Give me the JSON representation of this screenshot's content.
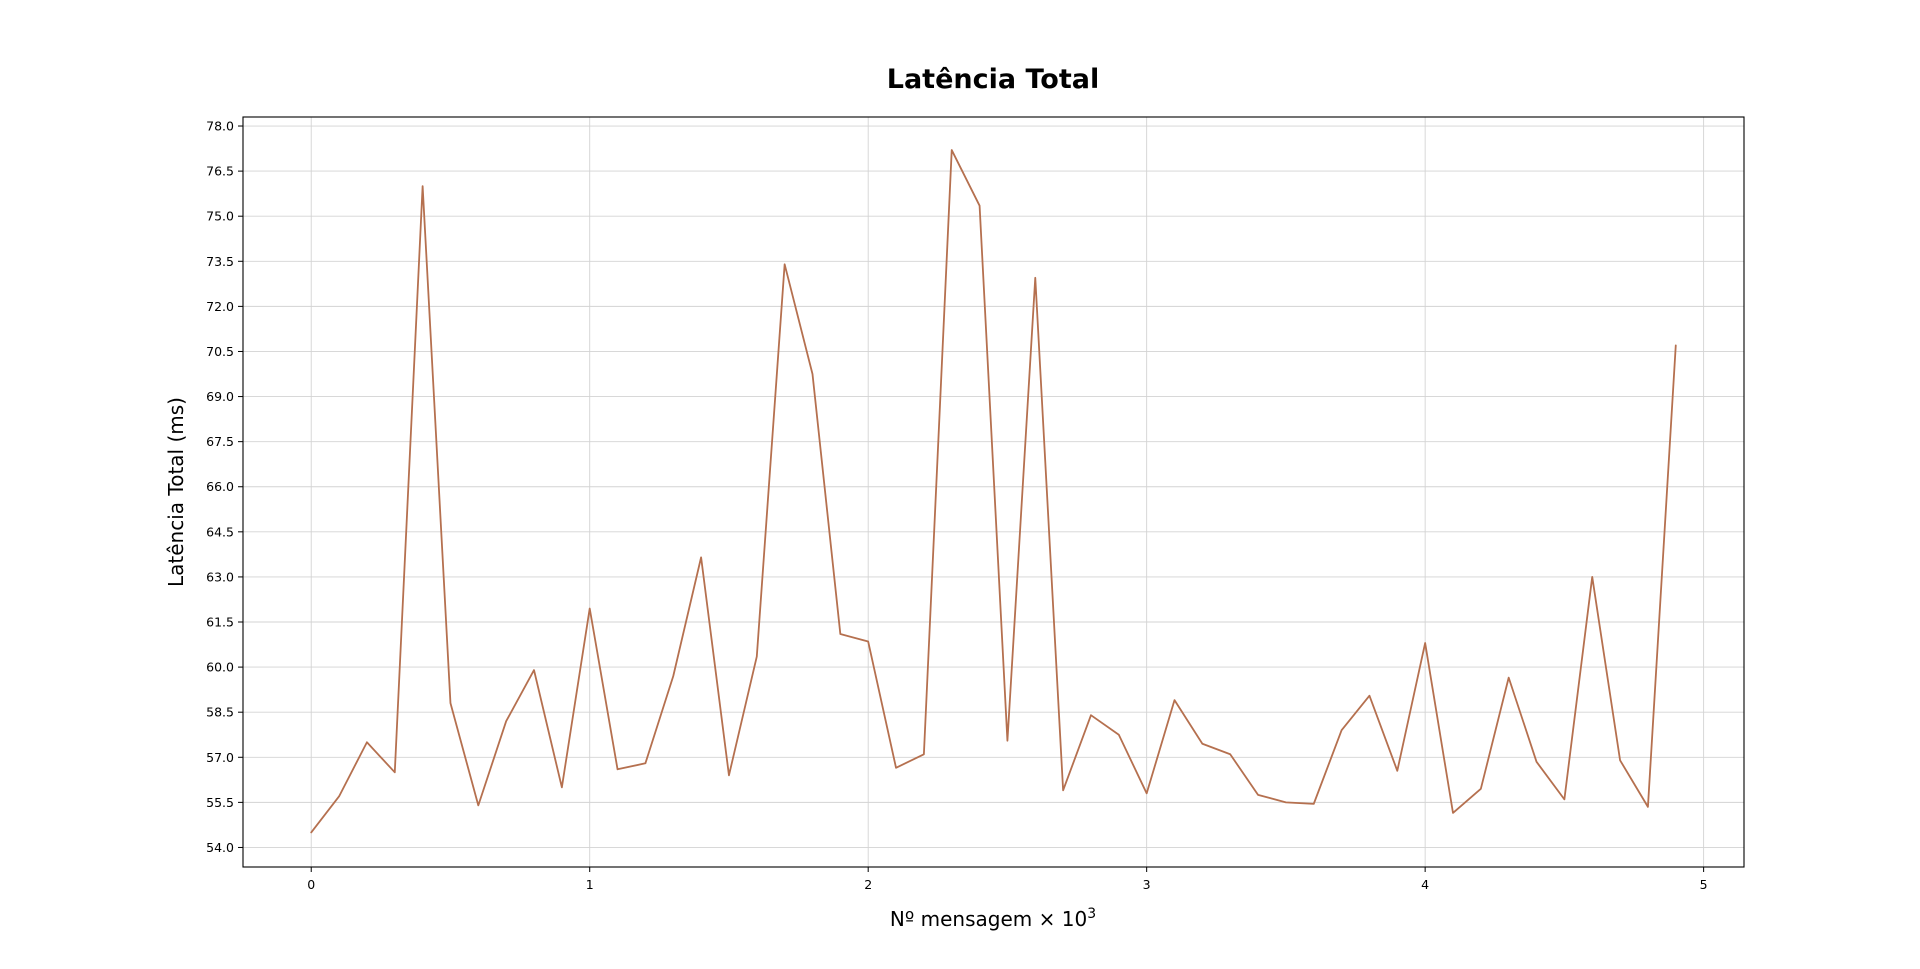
{
  "chart_data": {
    "type": "line",
    "title": "Latência Total",
    "xlabel_prefix": "Nº mensagem × 10",
    "xlabel_exponent": "3",
    "ylabel": "Latência Total (ms)",
    "xlim": [
      -0.245,
      5.145
    ],
    "ylim": [
      53.35,
      78.3
    ],
    "x_ticks": [
      0,
      1,
      2,
      3,
      4,
      5
    ],
    "x_tick_labels": [
      "0",
      "1",
      "2",
      "3",
      "4",
      "5"
    ],
    "y_ticks": [
      54.0,
      55.5,
      57.0,
      58.5,
      60.0,
      61.5,
      63.0,
      64.5,
      66.0,
      67.5,
      69.0,
      70.5,
      72.0,
      73.5,
      75.0,
      76.5,
      78.0
    ],
    "y_tick_labels": [
      "54.0",
      "55.5",
      "57.0",
      "58.5",
      "60.0",
      "61.5",
      "63.0",
      "64.5",
      "66.0",
      "67.5",
      "69.0",
      "70.5",
      "72.0",
      "73.5",
      "75.0",
      "76.5",
      "78.0"
    ],
    "grid": true,
    "series": [
      {
        "color": "#b5704f",
        "x": [
          0.0,
          0.1,
          0.2,
          0.3,
          0.4,
          0.5,
          0.6,
          0.7,
          0.8,
          0.9,
          1.0,
          1.1,
          1.2,
          1.3,
          1.4,
          1.5,
          1.6,
          1.7,
          1.8,
          1.9,
          2.0,
          2.1,
          2.2,
          2.3,
          2.4,
          2.5,
          2.6,
          2.7,
          2.8,
          2.9,
          3.0,
          3.1,
          3.2,
          3.3,
          3.4,
          3.5,
          3.6,
          3.7,
          3.8,
          3.9,
          4.0,
          4.1,
          4.2,
          4.3,
          4.4,
          4.5,
          4.6,
          4.7,
          4.8,
          4.9
        ],
        "y": [
          54.5,
          55.7,
          57.5,
          56.5,
          76.0,
          58.8,
          55.4,
          58.2,
          59.9,
          56.0,
          61.95,
          56.6,
          56.8,
          59.7,
          63.65,
          56.4,
          60.35,
          73.4,
          69.75,
          61.1,
          60.85,
          56.65,
          57.1,
          77.2,
          75.35,
          57.55,
          72.95,
          55.9,
          58.4,
          57.75,
          55.8,
          58.9,
          57.45,
          57.1,
          55.75,
          55.5,
          55.45,
          57.9,
          59.05,
          56.55,
          60.8,
          55.15,
          55.95,
          59.65,
          56.85,
          55.6,
          63.0,
          56.9,
          55.35,
          70.7
        ]
      }
    ]
  }
}
